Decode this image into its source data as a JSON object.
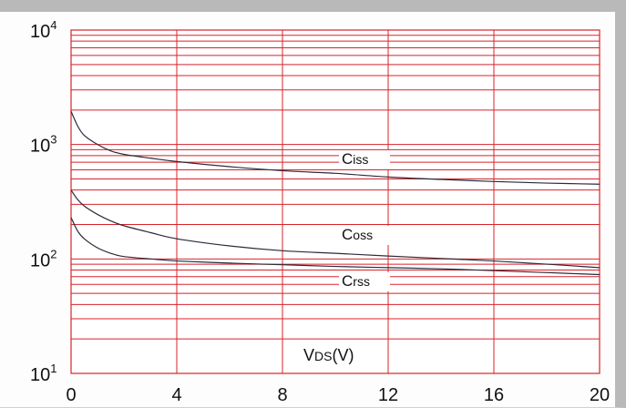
{
  "chart_data": {
    "type": "line",
    "title": "",
    "xlabel": "VDS(V)",
    "xlabel_parts": {
      "main": "V",
      "sub": "DS",
      "unit": "(V)"
    },
    "ylabel": "",
    "xlim": [
      0,
      20
    ],
    "ylim": [
      10,
      10000
    ],
    "yscale": "log",
    "grid": true,
    "grid_color": "#d8232a",
    "line_color": "#2b2b3a",
    "x_ticks": [
      "0",
      "4",
      "8",
      "12",
      "16",
      "20"
    ],
    "y_ticks": [
      {
        "base": "10",
        "exp": "1",
        "value": 10
      },
      {
        "base": "10",
        "exp": "2",
        "value": 100
      },
      {
        "base": "10",
        "exp": "3",
        "value": 1000
      },
      {
        "base": "10",
        "exp": "4",
        "value": 10000
      }
    ],
    "series": [
      {
        "name": "Ciss",
        "label_main": "C",
        "label_sub": "iss",
        "x": [
          0,
          0.25,
          0.5,
          1,
          1.5,
          2,
          3,
          4,
          6,
          8,
          10,
          12,
          14,
          16,
          18,
          20
        ],
        "values": [
          1950,
          1450,
          1200,
          1000,
          880,
          820,
          760,
          710,
          640,
          590,
          560,
          520,
          495,
          475,
          460,
          450
        ]
      },
      {
        "name": "Coss",
        "label_main": "C",
        "label_sub": "oss",
        "x": [
          0,
          0.25,
          0.5,
          1,
          1.5,
          2,
          3,
          4,
          6,
          8,
          10,
          12,
          14,
          16,
          18,
          20
        ],
        "values": [
          400,
          330,
          290,
          245,
          215,
          195,
          170,
          150,
          130,
          118,
          112,
          106,
          101,
          96,
          90,
          84
        ]
      },
      {
        "name": "Crss",
        "label_main": "C",
        "label_sub": "rss",
        "x": [
          0,
          0.25,
          0.5,
          1,
          1.5,
          2,
          3,
          4,
          6,
          8,
          10,
          12,
          14,
          16,
          18,
          20
        ],
        "values": [
          230,
          175,
          150,
          125,
          112,
          105,
          100,
          96,
          92,
          89,
          86,
          84,
          82,
          79,
          76,
          73
        ]
      }
    ]
  }
}
